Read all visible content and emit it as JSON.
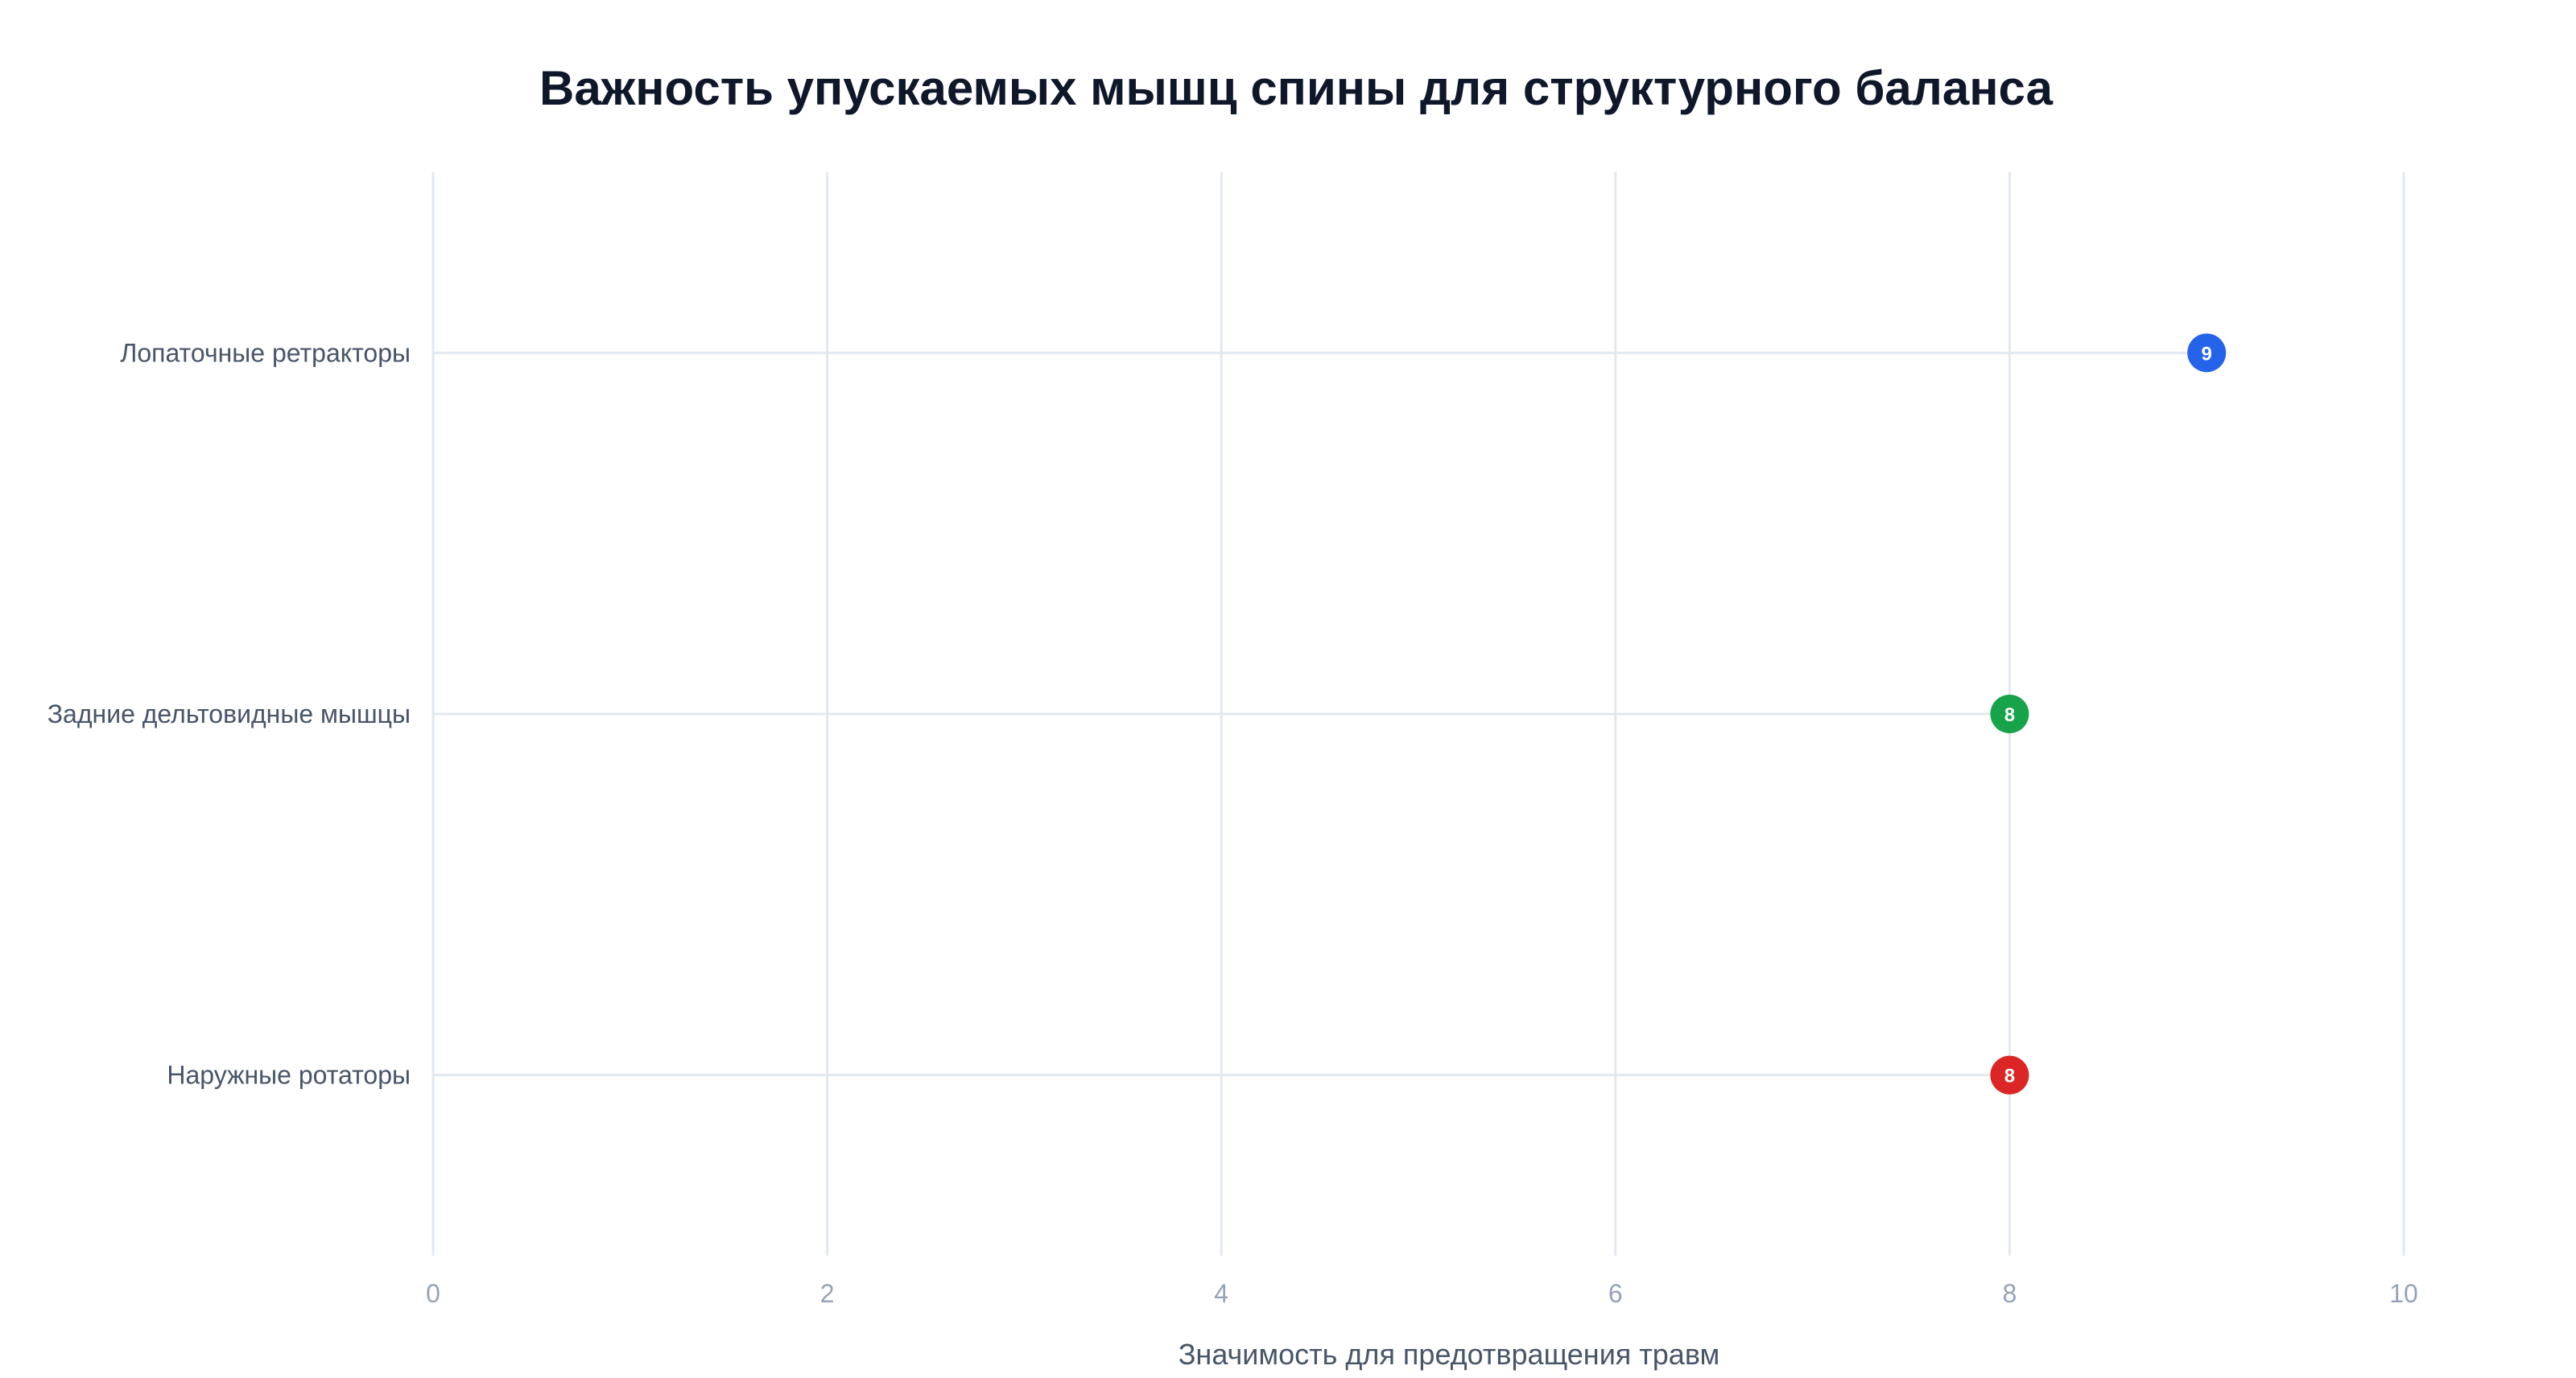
{
  "chart_data": {
    "type": "lollipop",
    "title": "Важность упускаемых мышц спины для структурного баланса",
    "xlabel": "Значимость для предотвращения травм",
    "ylabel": "",
    "xlim": [
      0,
      10
    ],
    "xticks": [
      "0",
      "2",
      "4",
      "6",
      "8",
      "10"
    ],
    "grid": true,
    "categories": [
      "Лопаточные ретракторы",
      "Задние дельтовидные мышцы",
      "Наружные ротаторы"
    ],
    "values": [
      9,
      8,
      8
    ],
    "data_labels": [
      "9",
      "8",
      "8"
    ],
    "colors": [
      "#2563eb",
      "#16a34a",
      "#dc2626"
    ]
  }
}
